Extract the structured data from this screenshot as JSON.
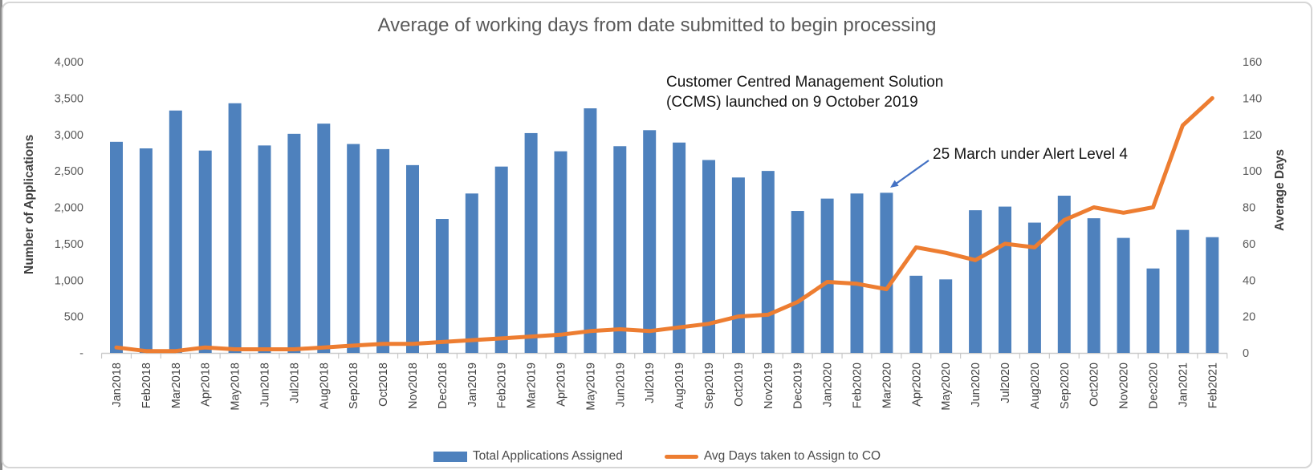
{
  "chart": {
    "title": "Average of working days from date submitted to begin processing",
    "left_axis": {
      "title": "Number of Applications",
      "ticks": [
        "4,000",
        "3,500",
        "3,000",
        "2,500",
        "2,000",
        "1,500",
        "1,000",
        "500",
        "-"
      ]
    },
    "right_axis": {
      "title": "Average Days",
      "ticks": [
        "160",
        "140",
        "120",
        "100",
        "80",
        "60",
        "40",
        "20",
        "0"
      ]
    },
    "legend": {
      "bar_label": "Total Applications Assigned",
      "line_label": "Avg Days taken to Assign to CO"
    },
    "annotations": {
      "ccms_line1": "Customer Centred Management Solution",
      "ccms_line2": "(CCMS) launched on 9 October 2019",
      "alert": "25 March under Alert Level 4"
    }
  },
  "chart_data": {
    "type": "combo",
    "categories": [
      "Jan2018",
      "Feb2018",
      "Mar2018",
      "Apr2018",
      "May2018",
      "Jun2018",
      "Jul2018",
      "Aug2018",
      "Sep2018",
      "Oct2018",
      "Nov2018",
      "Dec2018",
      "Jan2019",
      "Feb2019",
      "Mar2019",
      "Apr2019",
      "May2019",
      "Jun2019",
      "Jul2019",
      "Aug2019",
      "Sep2019",
      "Oct2019",
      "Nov2019",
      "Dec2019",
      "Jan2020",
      "Feb2020",
      "Mar2020",
      "Apr2020",
      "May2020",
      "Jun2020",
      "Jul2020",
      "Aug2020",
      "Sep2020",
      "Oct2020",
      "Nov2020",
      "Dec2020",
      "Jan2021",
      "Feb2021"
    ],
    "series": [
      {
        "name": "Total Applications Assigned",
        "type": "bar",
        "axis": "left",
        "color": "#4E81BD",
        "values": [
          2900,
          2810,
          3330,
          2780,
          3430,
          2850,
          3010,
          3150,
          2870,
          2800,
          2580,
          1840,
          2190,
          2560,
          3020,
          2770,
          3360,
          2840,
          3060,
          2890,
          2650,
          2410,
          2500,
          1950,
          2120,
          2190,
          2200,
          1060,
          1010,
          1960,
          2010,
          1790,
          2160,
          1850,
          1580,
          1160,
          1690,
          1590
        ]
      },
      {
        "name": "Avg Days taken to Assign to CO",
        "type": "line",
        "axis": "right",
        "color": "#ED7D31",
        "values": [
          3,
          1,
          1,
          3,
          2,
          2,
          2,
          3,
          4,
          5,
          5,
          6,
          7,
          8,
          9,
          10,
          12,
          13,
          12,
          14,
          16,
          20,
          21,
          28,
          39,
          38,
          35,
          58,
          55,
          51,
          60,
          58,
          73,
          80,
          77,
          80,
          125,
          140
        ]
      }
    ],
    "title": "Average of working days from date submitted to begin processing",
    "xlabel": "",
    "ylabel_left": "Number of Applications",
    "ylabel_right": "Average Days",
    "left_axis_range": [
      0,
      4000
    ],
    "right_axis_range": [
      0,
      160
    ],
    "gridlines": false,
    "legend_position": "bottom"
  },
  "colors": {
    "bar": "#4E81BD",
    "line": "#ED7D31",
    "arrow": "#4472C4",
    "axis_text": "#595959",
    "title_text": "#595959",
    "axis_line": "#C9C9C9"
  }
}
